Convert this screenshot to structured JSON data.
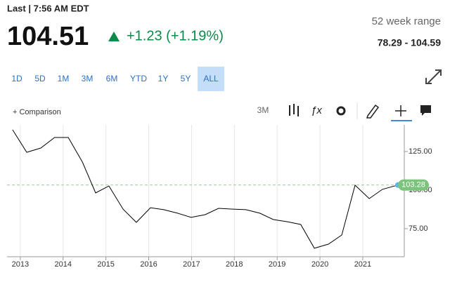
{
  "header": {
    "last_label": "Last | 7:56 AM EDT",
    "price": "104.51",
    "change": "+1.23 (+1.19%)",
    "range_label": "52 week range",
    "range_value": "78.29 - 104.59"
  },
  "toolbar": {
    "ranges": [
      "1D",
      "5D",
      "1M",
      "3M",
      "6M",
      "YTD",
      "1Y",
      "5Y",
      "ALL"
    ],
    "active_range": "ALL",
    "comparison": "+ Comparison",
    "interval": "3M"
  },
  "chart_data": {
    "type": "line",
    "color": "#000000",
    "x": [
      2012.82,
      2013.15,
      2013.48,
      2013.8,
      2014.12,
      2014.45,
      2014.76,
      2015.07,
      2015.4,
      2015.71,
      2016.04,
      2016.35,
      2016.68,
      2016.99,
      2017.32,
      2017.63,
      2017.96,
      2018.27,
      2018.6,
      2018.91,
      2019.24,
      2019.55,
      2019.87,
      2020.2,
      2020.51,
      2020.82,
      2021.15,
      2021.46,
      2021.82
    ],
    "values": [
      139.1,
      124.5,
      127.3,
      134.1,
      134.1,
      118.2,
      98.2,
      102.7,
      87.7,
      79.1,
      88.6,
      87.3,
      85.0,
      82.3,
      84.1,
      88.2,
      87.7,
      87.3,
      85.0,
      80.9,
      79.5,
      77.7,
      62.3,
      65.0,
      70.9,
      103.2,
      94.5,
      100.5,
      103.28
    ],
    "xlim": [
      2012.69,
      2021.97
    ],
    "xticks": [
      2013,
      2014,
      2015,
      2016,
      2017,
      2018,
      2019,
      2020,
      2021
    ],
    "ylim": [
      56.8,
      142.3
    ],
    "yticks": [
      {
        "value": 75,
        "label": "75.00"
      },
      {
        "value": 100,
        "label": "100.00"
      },
      {
        "value": 125,
        "label": "125.00"
      }
    ],
    "grid": true
  }
}
